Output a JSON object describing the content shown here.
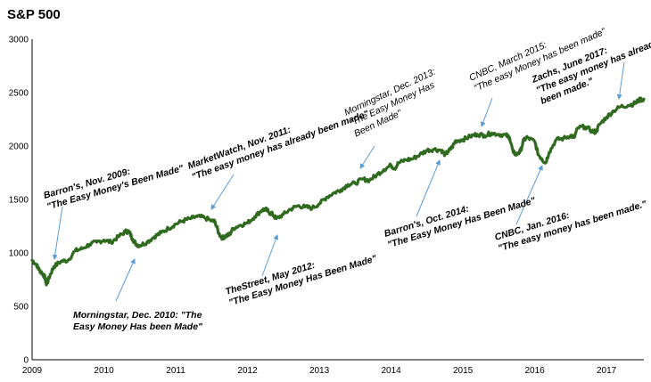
{
  "chart_data": {
    "type": "line",
    "title": "S&P 500",
    "xlabel": "",
    "ylabel": "",
    "xlim": [
      2009.0,
      2017.52
    ],
    "ylim": [
      0,
      3000
    ],
    "y_ticks": [
      "0",
      "500",
      "1000",
      "1500",
      "2000",
      "2500",
      "3000"
    ],
    "x_ticks": [
      "2009",
      "2010",
      "2011",
      "2012",
      "2013",
      "2014",
      "2015",
      "2016",
      "2017"
    ],
    "grid": false,
    "legend": "none",
    "colors": {
      "line": "#2f6a1f",
      "arrow": "#5b9bd5",
      "axis": "#000000"
    },
    "series": [
      {
        "x": [
          2009.0,
          2009.06,
          2009.1,
          2009.14,
          2009.18,
          2009.2,
          2009.25,
          2009.3,
          2009.4,
          2009.5,
          2009.6,
          2009.7,
          2009.8,
          2009.9,
          2010.0,
          2010.1,
          2010.2,
          2010.3,
          2010.35,
          2010.4,
          2010.45,
          2010.5,
          2010.6,
          2010.7,
          2010.8,
          2010.9,
          2011.0,
          2011.1,
          2011.2,
          2011.3,
          2011.4,
          2011.5,
          2011.55,
          2011.6,
          2011.65,
          2011.7,
          2011.75,
          2011.8,
          2011.9,
          2012.0,
          2012.1,
          2012.2,
          2012.25,
          2012.3,
          2012.35,
          2012.4,
          2012.5,
          2012.6,
          2012.7,
          2012.8,
          2012.9,
          2013.0,
          2013.1,
          2013.2,
          2013.3,
          2013.4,
          2013.5,
          2013.6,
          2013.7,
          2013.8,
          2013.9,
          2014.0,
          2014.05,
          2014.1,
          2014.2,
          2014.3,
          2014.4,
          2014.5,
          2014.6,
          2014.7,
          2014.75,
          2014.8,
          2014.85,
          2014.9,
          2015.0,
          2015.1,
          2015.2,
          2015.3,
          2015.4,
          2015.5,
          2015.6,
          2015.65,
          2015.7,
          2015.75,
          2015.8,
          2015.85,
          2015.9,
          2016.0,
          2016.05,
          2016.1,
          2016.15,
          2016.2,
          2016.3,
          2016.4,
          2016.5,
          2016.55,
          2016.6,
          2016.7,
          2016.8,
          2016.85,
          2016.9,
          2017.0,
          2017.1,
          2017.2,
          2017.3,
          2017.4,
          2017.45,
          2017.52
        ],
        "values": [
          931,
          890,
          840,
          810,
          770,
          700,
          790,
          870,
          920,
          930,
          1020,
          1040,
          1080,
          1100,
          1120,
          1100,
          1150,
          1200,
          1200,
          1130,
          1080,
          1070,
          1100,
          1150,
          1190,
          1230,
          1270,
          1300,
          1320,
          1340,
          1330,
          1300,
          1290,
          1180,
          1140,
          1160,
          1170,
          1230,
          1260,
          1280,
          1340,
          1400,
          1410,
          1380,
          1360,
          1320,
          1360,
          1410,
          1440,
          1430,
          1420,
          1460,
          1520,
          1560,
          1590,
          1640,
          1650,
          1690,
          1680,
          1730,
          1780,
          1820,
          1790,
          1840,
          1870,
          1880,
          1920,
          1960,
          1970,
          1960,
          1920,
          1950,
          1990,
          2050,
          2060,
          2090,
          2110,
          2100,
          2120,
          2110,
          2100,
          2080,
          1940,
          1920,
          1950,
          2060,
          2080,
          2040,
          1920,
          1880,
          1840,
          1940,
          2060,
          2070,
          2100,
          2080,
          2170,
          2180,
          2140,
          2130,
          2200,
          2270,
          2330,
          2370,
          2380,
          2400,
          2430,
          2440
        ]
      }
    ],
    "annotations": [
      {
        "lines": [
          "Barron's, Nov. 2009:",
          "\"The Easy Money's Been Made\""
        ],
        "bold": true
      },
      {
        "lines": [
          "Morningstar, Dec. 2010: \"The",
          "Easy Money Has been Made\""
        ],
        "bold": true
      },
      {
        "lines": [
          "MarketWatch, Nov. 2011:",
          "\"The easy money has already been made\""
        ],
        "bold": true
      },
      {
        "lines": [
          "TheStreet, May 2012:",
          "\"The Easy Money Has Been Made\""
        ],
        "bold": true
      },
      {
        "lines": [
          "Morningstar, Dec. 2013:",
          "\"The Easy Money Has",
          "Been Made\""
        ],
        "bold": false
      },
      {
        "lines": [
          "Barron's, Oct. 2014:",
          "\"The Easy Money Has Been Made\""
        ],
        "bold": true
      },
      {
        "lines": [
          "CNBC, March 2015:",
          "\"The easy Money has been made\""
        ],
        "bold": false
      },
      {
        "lines": [
          "CNBC, Jan. 2016:",
          "\"The easy money has been made.\""
        ],
        "bold": true
      },
      {
        "lines": [
          "Zachs, June 2017:",
          "\"The easy money has already",
          "been made.\""
        ],
        "bold": true
      }
    ]
  }
}
